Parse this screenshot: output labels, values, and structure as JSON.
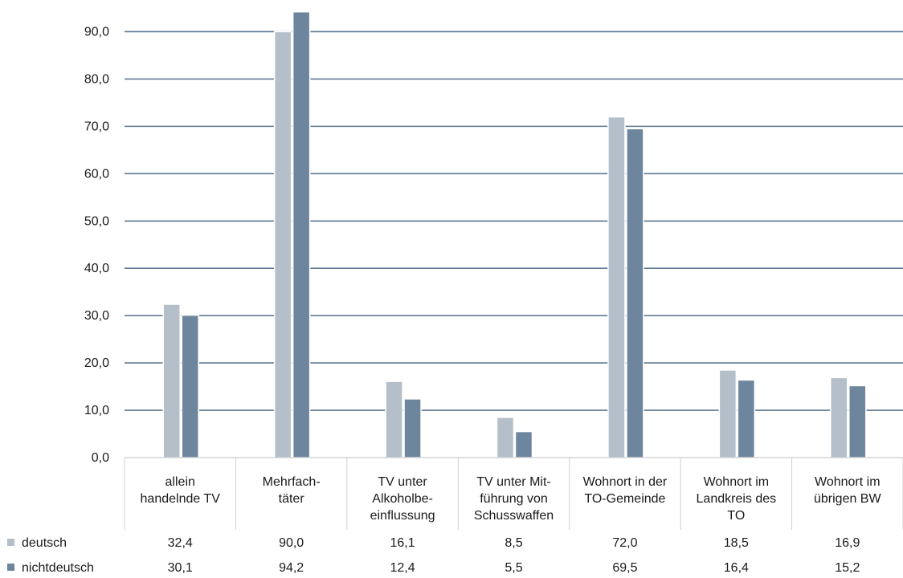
{
  "chart_data": {
    "type": "bar",
    "categories": [
      [
        "allein",
        "handelnde TV"
      ],
      [
        "Mehrfach-",
        "täter"
      ],
      [
        "TV unter",
        "Alkoholbe-",
        "einflussung"
      ],
      [
        "TV unter Mit-",
        "führung von",
        "Schusswaffen"
      ],
      [
        "Wohnort in der",
        "TO-Gemeinde"
      ],
      [
        "Wohnort im",
        "Landkreis des",
        "TO"
      ],
      [
        "Wohnort im",
        "übrigen BW"
      ]
    ],
    "series": [
      {
        "name": "deutsch",
        "color": "#b4bfc9",
        "values": [
          32.4,
          90.0,
          16.1,
          8.5,
          72.0,
          18.5,
          16.9
        ],
        "labels": [
          "32,4",
          "90,0",
          "16,1",
          "8,5",
          "72,0",
          "18,5",
          "16,9"
        ]
      },
      {
        "name": "nichtdeutsch",
        "color": "#6e869d",
        "values": [
          30.1,
          94.2,
          12.4,
          5.5,
          69.5,
          16.4,
          15.2
        ],
        "labels": [
          "30,1",
          "94,2",
          "12,4",
          "5,5",
          "69,5",
          "16,4",
          "15,2"
        ]
      }
    ],
    "y_ticks": [
      "0,0",
      "10,0",
      "20,0",
      "30,0",
      "40,0",
      "50,0",
      "60,0",
      "70,0",
      "80,0",
      "90,0"
    ],
    "ylim": [
      0,
      95
    ],
    "grid": true,
    "gridline_color": "#5f7a92",
    "legend": "data table below chart"
  }
}
